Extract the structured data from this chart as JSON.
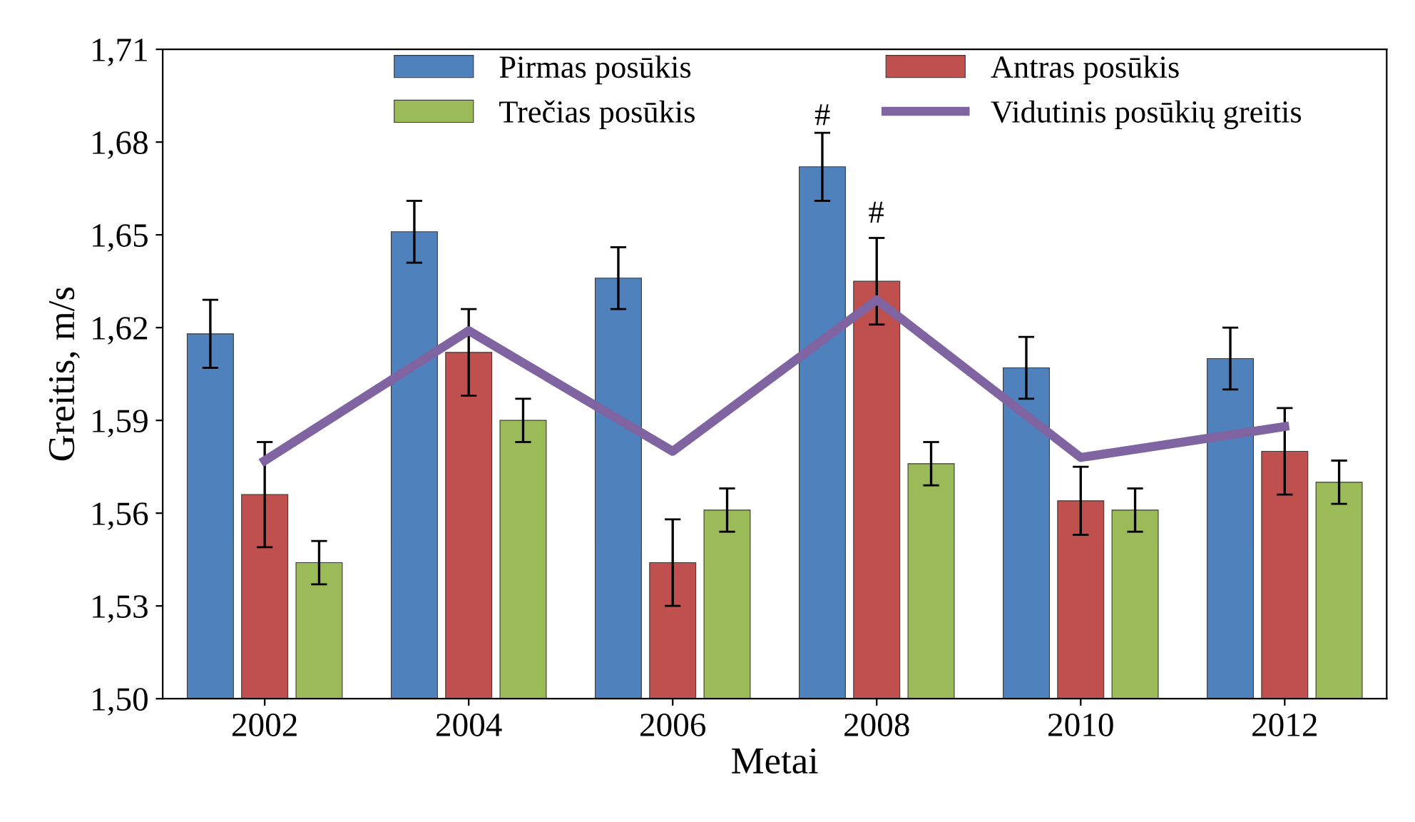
{
  "chart_data": {
    "type": "bar",
    "xlabel": "Metai",
    "ylabel": "Greitis, m/s",
    "categories": [
      "2002",
      "2004",
      "2006",
      "2008",
      "2010",
      "2012"
    ],
    "series": [
      {
        "name": "Pirmas posūkis",
        "color": "#4f81bd",
        "values": [
          1.618,
          1.651,
          1.636,
          1.672,
          1.607,
          1.61
        ],
        "errors": [
          0.011,
          0.01,
          0.01,
          0.011,
          0.01,
          0.01
        ]
      },
      {
        "name": "Antras posūkis",
        "color": "#c0504d",
        "values": [
          1.566,
          1.612,
          1.544,
          1.635,
          1.564,
          1.58
        ],
        "errors": [
          0.017,
          0.014,
          0.014,
          0.014,
          0.011,
          0.014
        ]
      },
      {
        "name": "Trečias posūkis",
        "color": "#9bbb59",
        "values": [
          1.544,
          1.59,
          1.561,
          1.576,
          1.561,
          1.57
        ],
        "errors": [
          0.007,
          0.007,
          0.007,
          0.007,
          0.007,
          0.007
        ]
      },
      {
        "name": "Vidutinis posūkių greitis",
        "type": "line",
        "color": "#8064a2",
        "values": [
          1.577,
          1.619,
          1.58,
          1.629,
          1.578,
          1.588
        ]
      }
    ],
    "ylim": [
      1.5,
      1.71
    ],
    "yticks": [
      {
        "value": 1.5,
        "label": "1,50"
      },
      {
        "value": 1.53,
        "label": "1,53"
      },
      {
        "value": 1.56,
        "label": "1,56"
      },
      {
        "value": 1.59,
        "label": "1,59"
      },
      {
        "value": 1.62,
        "label": "1,62"
      },
      {
        "value": 1.65,
        "label": "1,65"
      },
      {
        "value": 1.68,
        "label": "1,68"
      },
      {
        "value": 1.71,
        "label": "1,71"
      }
    ],
    "annotations": [
      "#",
      "#"
    ],
    "legend": "top",
    "grid": false,
    "marker": "none"
  }
}
